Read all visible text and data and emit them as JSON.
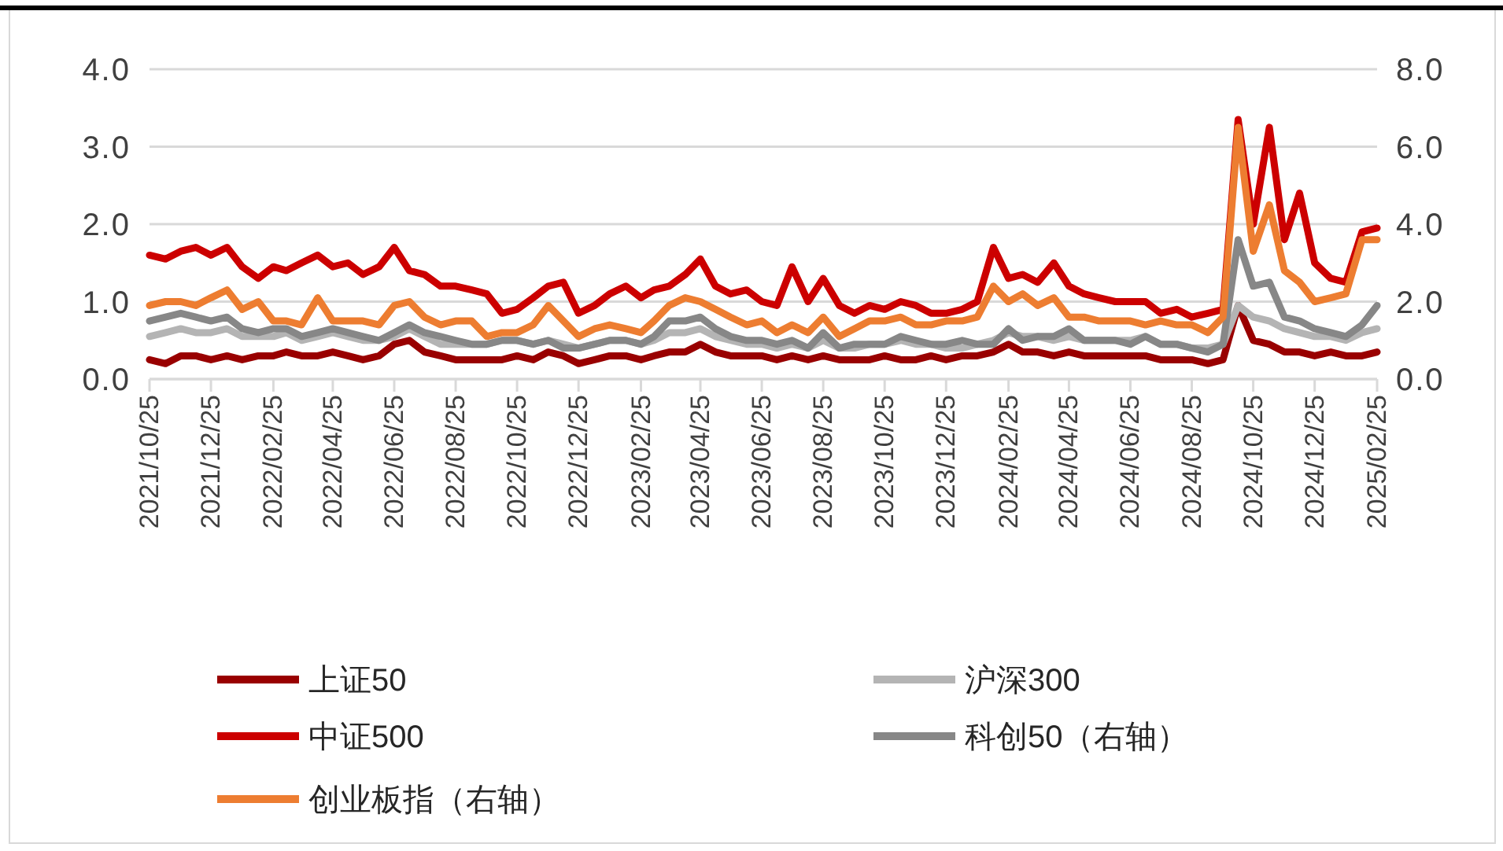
{
  "chart_data": {
    "type": "line",
    "legend": "bottom",
    "grid": "y",
    "line_style": "solid",
    "x": [
      "2021-10-25",
      "2021-11-10",
      "2021-11-25",
      "2021-12-10",
      "2021-12-25",
      "2022-01-10",
      "2022-01-25",
      "2022-02-10",
      "2022-02-25",
      "2022-03-10",
      "2022-03-25",
      "2022-04-10",
      "2022-04-25",
      "2022-05-10",
      "2022-05-25",
      "2022-06-10",
      "2022-06-25",
      "2022-07-10",
      "2022-07-25",
      "2022-08-10",
      "2022-08-25",
      "2022-09-10",
      "2022-09-25",
      "2022-10-10",
      "2022-10-25",
      "2022-11-10",
      "2022-11-25",
      "2022-12-10",
      "2022-12-25",
      "2023-01-10",
      "2023-01-25",
      "2023-02-10",
      "2023-02-25",
      "2023-03-10",
      "2023-03-25",
      "2023-04-10",
      "2023-04-25",
      "2023-05-10",
      "2023-05-25",
      "2023-06-10",
      "2023-06-25",
      "2023-07-10",
      "2023-07-25",
      "2023-08-10",
      "2023-08-25",
      "2023-09-10",
      "2023-09-25",
      "2023-10-10",
      "2023-10-25",
      "2023-11-10",
      "2023-11-25",
      "2023-12-10",
      "2023-12-25",
      "2024-01-10",
      "2024-01-25",
      "2024-02-10",
      "2024-02-25",
      "2024-03-10",
      "2024-03-25",
      "2024-04-10",
      "2024-04-25",
      "2024-05-10",
      "2024-05-25",
      "2024-06-10",
      "2024-06-25",
      "2024-07-10",
      "2024-07-25",
      "2024-08-10",
      "2024-08-25",
      "2024-09-10",
      "2024-09-25",
      "2024-10-10",
      "2024-10-25",
      "2024-11-10",
      "2024-11-25",
      "2024-12-10",
      "2024-12-25",
      "2025-01-10",
      "2025-01-25",
      "2025-02-10",
      "2025-02-25"
    ],
    "xlim": [
      "2021-10-25",
      "2025-02-25"
    ],
    "xticks": [
      {
        "value": "2021-10-25",
        "label": "2021/10/25"
      },
      {
        "value": "2021-12-25",
        "label": "2021/12/25"
      },
      {
        "value": "2022-02-25",
        "label": "2022/02/25"
      },
      {
        "value": "2022-04-25",
        "label": "2022/04/25"
      },
      {
        "value": "2022-06-25",
        "label": "2022/06/25"
      },
      {
        "value": "2022-08-25",
        "label": "2022/08/25"
      },
      {
        "value": "2022-10-25",
        "label": "2022/10/25"
      },
      {
        "value": "2022-12-25",
        "label": "2022/12/25"
      },
      {
        "value": "2023-02-25",
        "label": "2023/02/25"
      },
      {
        "value": "2023-04-25",
        "label": "2023/04/25"
      },
      {
        "value": "2023-06-25",
        "label": "2023/06/25"
      },
      {
        "value": "2023-08-25",
        "label": "2023/08/25"
      },
      {
        "value": "2023-10-25",
        "label": "2023/10/25"
      },
      {
        "value": "2023-12-25",
        "label": "2023/12/25"
      },
      {
        "value": "2024-02-25",
        "label": "2024/02/25"
      },
      {
        "value": "2024-04-25",
        "label": "2024/04/25"
      },
      {
        "value": "2024-06-25",
        "label": "2024/06/25"
      },
      {
        "value": "2024-08-25",
        "label": "2024/08/25"
      },
      {
        "value": "2024-10-25",
        "label": "2024/10/25"
      },
      {
        "value": "2024-12-25",
        "label": "2024/12/25"
      },
      {
        "value": "2025-02-25",
        "label": "2025/02/25"
      }
    ],
    "ylim": [
      0,
      4
    ],
    "yticks": [
      {
        "value": 0,
        "label": "0.0"
      },
      {
        "value": 1,
        "label": "1.0"
      },
      {
        "value": 2,
        "label": "2.0"
      },
      {
        "value": 3,
        "label": "3.0"
      },
      {
        "value": 4,
        "label": "4.0"
      }
    ],
    "y2lim": [
      0,
      8
    ],
    "y2ticks": [
      {
        "value": 0,
        "label": "0.0"
      },
      {
        "value": 2,
        "label": "2.0"
      },
      {
        "value": 4,
        "label": "4.0"
      },
      {
        "value": 6,
        "label": "6.0"
      },
      {
        "value": 8,
        "label": "8.0"
      }
    ],
    "series": [
      {
        "name": "上证50",
        "color": "#990000",
        "values": [
          0.25,
          0.2,
          0.3,
          0.3,
          0.25,
          0.3,
          0.25,
          0.3,
          0.3,
          0.35,
          0.3,
          0.3,
          0.35,
          0.3,
          0.25,
          0.3,
          0.45,
          0.5,
          0.35,
          0.3,
          0.25,
          0.25,
          0.25,
          0.25,
          0.3,
          0.25,
          0.35,
          0.3,
          0.2,
          0.25,
          0.3,
          0.3,
          0.25,
          0.3,
          0.35,
          0.35,
          0.45,
          0.35,
          0.3,
          0.3,
          0.3,
          0.25,
          0.3,
          0.25,
          0.3,
          0.25,
          0.25,
          0.25,
          0.3,
          0.25,
          0.25,
          0.3,
          0.25,
          0.3,
          0.3,
          0.35,
          0.45,
          0.35,
          0.35,
          0.3,
          0.35,
          0.3,
          0.3,
          0.3,
          0.3,
          0.3,
          0.25,
          0.25,
          0.25,
          0.2,
          0.25,
          0.95,
          0.5,
          0.45,
          0.35,
          0.35,
          0.3,
          0.35,
          0.3,
          0.3,
          0.35
        ]
      },
      {
        "name": "沪深300",
        "color": "#b4b4b4",
        "values": [
          0.55,
          0.6,
          0.65,
          0.6,
          0.6,
          0.65,
          0.55,
          0.55,
          0.55,
          0.6,
          0.5,
          0.55,
          0.6,
          0.55,
          0.5,
          0.5,
          0.55,
          0.65,
          0.55,
          0.45,
          0.45,
          0.45,
          0.45,
          0.5,
          0.5,
          0.45,
          0.5,
          0.45,
          0.4,
          0.45,
          0.5,
          0.5,
          0.45,
          0.5,
          0.6,
          0.6,
          0.65,
          0.55,
          0.5,
          0.45,
          0.45,
          0.4,
          0.45,
          0.4,
          0.5,
          0.4,
          0.4,
          0.45,
          0.45,
          0.5,
          0.45,
          0.45,
          0.4,
          0.4,
          0.45,
          0.5,
          0.6,
          0.55,
          0.55,
          0.5,
          0.55,
          0.5,
          0.5,
          0.5,
          0.5,
          0.55,
          0.45,
          0.45,
          0.4,
          0.4,
          0.45,
          0.95,
          0.8,
          0.75,
          0.65,
          0.6,
          0.55,
          0.55,
          0.5,
          0.6,
          0.65
        ]
      },
      {
        "name": "中证500",
        "color": "#cc0000",
        "values": [
          1.6,
          1.55,
          1.65,
          1.7,
          1.6,
          1.7,
          1.45,
          1.3,
          1.45,
          1.4,
          1.5,
          1.6,
          1.45,
          1.5,
          1.35,
          1.45,
          1.7,
          1.4,
          1.35,
          1.2,
          1.2,
          1.15,
          1.1,
          0.85,
          0.9,
          1.05,
          1.2,
          1.25,
          0.85,
          0.95,
          1.1,
          1.2,
          1.05,
          1.15,
          1.2,
          1.35,
          1.55,
          1.2,
          1.1,
          1.15,
          1.0,
          0.95,
          1.45,
          1.0,
          1.3,
          0.95,
          0.85,
          0.95,
          0.9,
          1.0,
          0.95,
          0.85,
          0.85,
          0.9,
          1.0,
          1.7,
          1.3,
          1.35,
          1.25,
          1.5,
          1.2,
          1.1,
          1.05,
          1.0,
          1.0,
          1.0,
          0.85,
          0.9,
          0.8,
          0.85,
          0.9,
          3.35,
          2.0,
          3.25,
          1.8,
          2.4,
          1.5,
          1.3,
          1.25,
          1.9,
          1.95
        ]
      },
      {
        "name": "科创50（右轴）",
        "color": "#878787",
        "axis": "y2",
        "values": [
          1.5,
          1.6,
          1.7,
          1.6,
          1.5,
          1.6,
          1.3,
          1.2,
          1.3,
          1.3,
          1.1,
          1.2,
          1.3,
          1.2,
          1.1,
          1.0,
          1.2,
          1.4,
          1.2,
          1.1,
          1.0,
          0.9,
          0.9,
          1.0,
          1.0,
          0.9,
          1.0,
          0.8,
          0.8,
          0.9,
          1.0,
          1.0,
          0.9,
          1.1,
          1.5,
          1.5,
          1.6,
          1.3,
          1.1,
          1.0,
          1.0,
          0.9,
          1.0,
          0.8,
          1.2,
          0.8,
          0.9,
          0.9,
          0.9,
          1.1,
          1.0,
          0.9,
          0.9,
          1.0,
          0.9,
          0.9,
          1.3,
          1.0,
          1.1,
          1.1,
          1.3,
          1.0,
          1.0,
          1.0,
          0.9,
          1.1,
          0.9,
          0.9,
          0.8,
          0.7,
          0.9,
          3.6,
          2.4,
          2.5,
          1.6,
          1.5,
          1.3,
          1.2,
          1.1,
          1.4,
          1.9
        ]
      },
      {
        "name": "创业板指（右轴）",
        "color": "#ed7d31",
        "axis": "y2",
        "values": [
          1.9,
          2.0,
          2.0,
          1.9,
          2.1,
          2.3,
          1.8,
          2.0,
          1.5,
          1.5,
          1.4,
          2.1,
          1.5,
          1.5,
          1.5,
          1.4,
          1.9,
          2.0,
          1.6,
          1.4,
          1.5,
          1.5,
          1.1,
          1.2,
          1.2,
          1.4,
          1.9,
          1.5,
          1.1,
          1.3,
          1.4,
          1.3,
          1.2,
          1.5,
          1.9,
          2.1,
          2.0,
          1.8,
          1.6,
          1.4,
          1.5,
          1.2,
          1.4,
          1.2,
          1.6,
          1.1,
          1.3,
          1.5,
          1.5,
          1.6,
          1.4,
          1.4,
          1.5,
          1.5,
          1.6,
          2.4,
          2.0,
          2.2,
          1.9,
          2.1,
          1.6,
          1.6,
          1.5,
          1.5,
          1.5,
          1.4,
          1.5,
          1.4,
          1.4,
          1.2,
          1.6,
          6.5,
          3.3,
          4.5,
          2.8,
          2.5,
          2.0,
          2.1,
          2.2,
          3.6,
          3.6
        ]
      }
    ]
  }
}
